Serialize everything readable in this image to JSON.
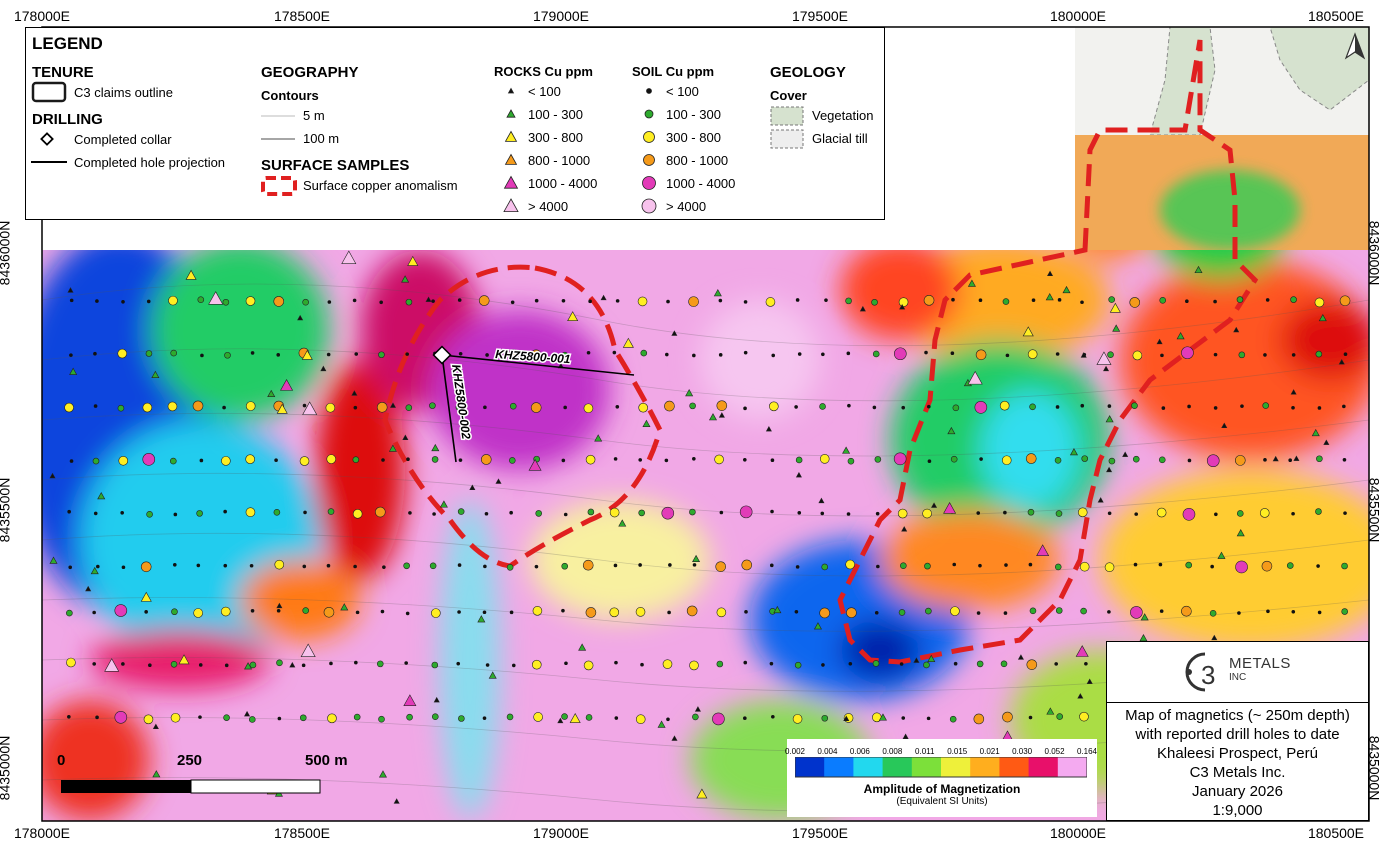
{
  "map": {
    "x_ticks": [
      "178000E",
      "178500E",
      "179000E",
      "179500E",
      "180000E",
      "180500E"
    ],
    "y_ticks": [
      "8436000N",
      "8435500N",
      "8435000N"
    ],
    "hole_labels": [
      "KHZ5800-001",
      "KHZ5800-002"
    ],
    "north_arrow": "north-arrow-icon"
  },
  "legend": {
    "title": "LEGEND",
    "tenure": {
      "heading": "TENURE",
      "items": [
        "C3 claims outline"
      ]
    },
    "drilling": {
      "heading": "DRILLING",
      "items": [
        "Completed collar",
        "Completed hole projection"
      ]
    },
    "geography": {
      "heading": "GEOGRAPHY",
      "sub": "Contours",
      "items": [
        "5 m",
        "100 m"
      ]
    },
    "surface": {
      "heading": "SURFACE SAMPLES",
      "items": [
        "Surface copper anomalism"
      ]
    },
    "rocks": {
      "heading": "ROCKS Cu ppm",
      "items": [
        "< 100",
        "100 - 300",
        "300 - 800",
        "800 - 1000",
        "1000 - 4000",
        "> 4000"
      ]
    },
    "soil": {
      "heading": "SOIL Cu ppm",
      "items": [
        "< 100",
        "100 - 300",
        "300 - 800",
        "800 - 1000",
        "1000 - 4000",
        "> 4000"
      ]
    },
    "geology": {
      "heading": "GEOLOGY",
      "sub": "Cover",
      "items": [
        "Vegetation",
        "Glacial till"
      ]
    }
  },
  "sample_colors": [
    "#111111",
    "#2eaa2e",
    "#ffee22",
    "#f59a1a",
    "#e23bb8",
    "#f7c2ec"
  ],
  "anomaly_color": "#e02020",
  "colorbar": {
    "labels": [
      "0.002",
      "0.004",
      "0.006",
      "0.008",
      "0.011",
      "0.015",
      "0.021",
      "0.030",
      "0.052",
      "0.164"
    ],
    "colors": [
      "#0033cc",
      "#0a7cff",
      "#22d8ee",
      "#28c85a",
      "#7ce03a",
      "#eef03a",
      "#ffae1e",
      "#ff5a14",
      "#e8106a",
      "#f4aaf0"
    ],
    "title": "Amplitude of Magnetization",
    "subtitle": "(Equivalent SI Units)"
  },
  "scalebar": {
    "labels": [
      "0",
      "250",
      "500 m"
    ]
  },
  "title_block": {
    "logo_text": "METALS",
    "logo_sub": "INC",
    "lines": [
      "Map of magnetics (~ 250m depth)",
      "with reported drill holes to date",
      "Khaleesi Prospect, Perú",
      "C3 Metals Inc.",
      "January 2026",
      "1:9,000"
    ]
  }
}
